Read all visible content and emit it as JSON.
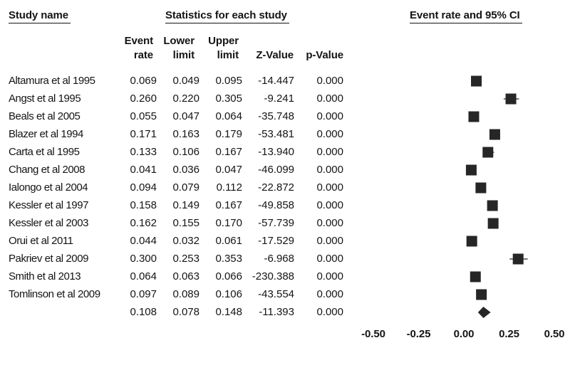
{
  "chart_data": {
    "type": "scatter",
    "group_headers": {
      "study": "Study name",
      "statistics": "Statistics for each study",
      "plot": "Event rate and 95% CI"
    },
    "columns": {
      "event_rate": [
        "Event",
        "rate"
      ],
      "lower_limit": [
        "Lower",
        "limit"
      ],
      "upper_limit": [
        "Upper",
        "limit"
      ],
      "z_value": "Z-Value",
      "p_value": "p-Value"
    },
    "studies": [
      {
        "name": "Altamura et al 1995",
        "event_rate": 0.069,
        "lower_limit": 0.049,
        "upper_limit": 0.095,
        "z_value": -14.447,
        "p_value": 0.0
      },
      {
        "name": "Angst et al 1995",
        "event_rate": 0.26,
        "lower_limit": 0.22,
        "upper_limit": 0.305,
        "z_value": -9.241,
        "p_value": 0.0
      },
      {
        "name": "Beals et al 2005",
        "event_rate": 0.055,
        "lower_limit": 0.047,
        "upper_limit": 0.064,
        "z_value": -35.748,
        "p_value": 0.0
      },
      {
        "name": "Blazer et al 1994",
        "event_rate": 0.171,
        "lower_limit": 0.163,
        "upper_limit": 0.179,
        "z_value": -53.481,
        "p_value": 0.0
      },
      {
        "name": "Carta et al 1995",
        "event_rate": 0.133,
        "lower_limit": 0.106,
        "upper_limit": 0.167,
        "z_value": -13.94,
        "p_value": 0.0
      },
      {
        "name": "Chang et al 2008",
        "event_rate": 0.041,
        "lower_limit": 0.036,
        "upper_limit": 0.047,
        "z_value": -46.099,
        "p_value": 0.0
      },
      {
        "name": "Ialongo et al 2004",
        "event_rate": 0.094,
        "lower_limit": 0.079,
        "upper_limit": 0.112,
        "z_value": -22.872,
        "p_value": 0.0
      },
      {
        "name": "Kessler et al 1997",
        "event_rate": 0.158,
        "lower_limit": 0.149,
        "upper_limit": 0.167,
        "z_value": -49.858,
        "p_value": 0.0
      },
      {
        "name": "Kessler et al 2003",
        "event_rate": 0.162,
        "lower_limit": 0.155,
        "upper_limit": 0.17,
        "z_value": -57.739,
        "p_value": 0.0
      },
      {
        "name": "Orui et al 2011",
        "event_rate": 0.044,
        "lower_limit": 0.032,
        "upper_limit": 0.061,
        "z_value": -17.529,
        "p_value": 0.0
      },
      {
        "name": "Pakriev et al 2009",
        "event_rate": 0.3,
        "lower_limit": 0.253,
        "upper_limit": 0.353,
        "z_value": -6.968,
        "p_value": 0.0
      },
      {
        "name": "Smith et al 2013",
        "event_rate": 0.064,
        "lower_limit": 0.063,
        "upper_limit": 0.066,
        "z_value": -230.388,
        "p_value": 0.0
      },
      {
        "name": "Tomlinson et al 2009",
        "event_rate": 0.097,
        "lower_limit": 0.089,
        "upper_limit": 0.106,
        "z_value": -43.554,
        "p_value": 0.0
      }
    ],
    "summary": {
      "event_rate": 0.108,
      "lower_limit": 0.078,
      "upper_limit": 0.148,
      "z_value": -11.393,
      "p_value": 0.0
    },
    "x_ticks": [
      -0.5,
      -0.25,
      0,
      0.25,
      0.5
    ],
    "xlim": [
      -0.5,
      0.5
    ],
    "colors": {
      "marker": "#262626",
      "text": "#141414"
    }
  }
}
